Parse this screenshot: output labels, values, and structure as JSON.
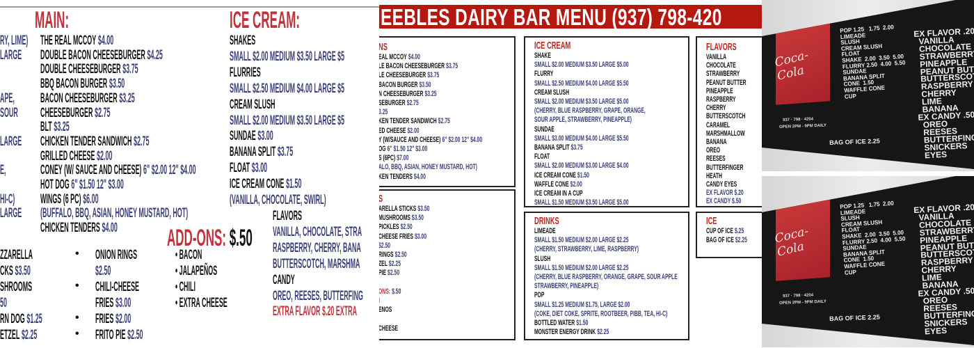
{
  "left_menu": {
    "edge_fragments": [
      "RY, LIME)",
      "LARGE",
      "APE,",
      "SOUR",
      "LARGE",
      "E,",
      "HI-C)",
      "LARGE"
    ],
    "main": {
      "title": "MAIN:",
      "items": [
        {
          "name": "THE REAL MCCOY",
          "price": "$4.00"
        },
        {
          "name": "DOUBLE BACON CHEESEBURGER",
          "price": "$4.25"
        },
        {
          "name": "DOUBLE CHEESEBURGER",
          "price": "$3.75"
        },
        {
          "name": "BBQ BACON BURGER",
          "price": "$3.50"
        },
        {
          "name": "BACON CHEESEBURGER",
          "price": "$3.25"
        },
        {
          "name": "CHEESEBURGER",
          "price": "$2.75"
        },
        {
          "name": "BLT",
          "price": "$3.25"
        },
        {
          "name": "CHICKEN TENDER SANDWICH",
          "price": "$2.75"
        },
        {
          "name": "GRILLED CHEESE",
          "price": "$2.00"
        },
        {
          "name": "CONEY (W/ SAUCE AND CHEESE)",
          "price": "6\" $2.00 12\" $4.00"
        },
        {
          "name": "HOT DOG",
          "price": "6\" $1.50 12\" $3.00"
        },
        {
          "name": "WINGS (6 PC)",
          "price": "$6.00"
        },
        {
          "price": "(BUFFALO, BBQ, ASIAN, HONEY MUSTARD, HOT)"
        },
        {
          "name": "CHICKEN TENDERS",
          "price": "$4.00"
        }
      ]
    },
    "ice_cream": {
      "title": "ICE CREAM:",
      "items": [
        {
          "name": "SHAKES"
        },
        {
          "price": "SMALL $2.00 MEDIUM $3.50 LARGE $5"
        },
        {
          "name": "FLURRIES"
        },
        {
          "price": "SMALL $2.50 MEDIUM $4.00 LARGE $5"
        },
        {
          "name": "CREAM SLUSH"
        },
        {
          "price": "SMALL $2.00 MEDIUM $3.50 LARGE $5"
        },
        {
          "name": "SUNDAE",
          "price": "$3.00"
        },
        {
          "name": "BANANA SPLIT",
          "price": "$3.75"
        },
        {
          "name": "FLOAT",
          "price": "$3.00"
        },
        {
          "name": "ICE CREAM CONE",
          "price": "$1.50"
        },
        {
          "price": "(VANILLA, CHOCOLATE, SWIRL)"
        }
      ],
      "flavors": [
        {
          "name": "FLAVORS"
        },
        {
          "price": "VANILLA, CHOCOLATE, STRA"
        },
        {
          "price": "RASPBERRY, CHERRY, BANA"
        },
        {
          "price": "BUTTERSCOTCH, MARSHMA"
        },
        {
          "name": "CANDY"
        },
        {
          "price": "OREO, REESES, BUTTERFING"
        },
        {
          "extra": "EXTRA FLAVOR $.20 EXTRA"
        }
      ]
    },
    "sides_fragments": [
      {
        "name": "ZZARELLA"
      },
      {
        "name": "CKS",
        "price": "$3.50"
      },
      {
        "name": "SHROOMS"
      },
      {
        "price": "50"
      },
      {
        "name": "RN DOG",
        "price": "$1.25"
      },
      {
        "name": "ETZEL",
        "price": "$2.25"
      }
    ],
    "sides": [
      {
        "name": "ONION RINGS"
      },
      {
        "price": "$2.50"
      },
      {
        "name": "CHILI-CHEESE"
      },
      {
        "name": "FRIES",
        "price": "$3.00"
      },
      {
        "name": "FRIES",
        "price": "$2.00"
      },
      {
        "name": "FRITO PIE",
        "price": "$2.50"
      }
    ],
    "bullet": "•",
    "add_ons": {
      "title": "ADD-ONS:",
      "price": "$.50",
      "items": [
        "• BACON",
        "• JALAPEÑOS",
        "• CHILI",
        "• EXTRA CHEESE"
      ]
    }
  },
  "middle_menu": {
    "banner": "EEBLES DAIRY BAR MENU (937) 798-420",
    "banner_color": "#b5180f",
    "mains": {
      "title": "NS",
      "items": [
        {
          "name": "EAL MCCOY",
          "price": "$4.00"
        },
        {
          "name": "LE BACON CHEESEBURGER",
          "price": "$3.75"
        },
        {
          "name": "LE CHEESEBURGER",
          "price": "$3.75"
        },
        {
          "name": "BACON BURGER",
          "price": "$3.50"
        },
        {
          "name": "N CHEESEBURGER",
          "price": "$3.25"
        },
        {
          "name": "SEBURGER",
          "price": "$2.75"
        },
        {
          "price": "3.25"
        },
        {
          "name": "KEN TENDER SANDWICH",
          "price": "$2.75"
        },
        {
          "name": "ED CHEESE",
          "price": "$2.00"
        },
        {
          "name": "Y (W/SAUCE AND CHEESE)",
          "price": "6\" $2.00 12\" $4.00"
        },
        {
          "name": "OG",
          "price": "6\" $1.50 12\" $3.00"
        },
        {
          "name": "S (6PC)",
          "price": "$7.00"
        },
        {
          "price": "ALO, BBQ, ASIAN, HONEY MUSTARD, HOT)"
        },
        {
          "name": "KEN TENDERS",
          "price": "$4.00"
        }
      ]
    },
    "sides": {
      "title": "S",
      "items": [
        {
          "name": "ARELLA STICKS",
          "price": "$3.50"
        },
        {
          "name": "MUSHROOMS",
          "price": "$3.50"
        },
        {
          "name": "PICKLES",
          "price": "$2.50"
        },
        {
          "name": "CHEESE FRIES",
          "price": "$3.00"
        },
        {
          "price": "$2.50"
        },
        {
          "name": "RINGS",
          "price": "$2.50"
        },
        {
          "name": "ZEL",
          "price": "$2.25"
        },
        {
          "name": "PIE",
          "price": "$2.50"
        },
        {},
        {
          "extra": "ONS:",
          "price": "$.50"
        },
        {
          "name": "I"
        },
        {
          "name": "ENOS"
        },
        {},
        {
          "name": "CHEESE"
        }
      ]
    },
    "ice_cream": {
      "title": "ICE CREAM",
      "items": [
        {
          "name": "SHAKE"
        },
        {
          "price": "SMALL $2.00 MEDIUM $3.50 LARGE $5.00"
        },
        {
          "name": "FLURRY"
        },
        {
          "price": "SMALL $2.50 MEDIUM $4.00 LARGE $5.50"
        },
        {
          "name": "CREAM SLUSH"
        },
        {
          "price": "SMALL $2.00 MEDIUM $3.50 LARGE $5.00"
        },
        {
          "price": "(CHERRY, BLUE RASPBERRY, GRAPE, ORANGE,"
        },
        {
          "price": "SOUR APPLE, STRAWBERRY, PINEAPPLE)"
        },
        {
          "name": "SUNDAE"
        },
        {
          "price": "SMALL $3.00 MEDIUM $4.00 LARGE $5.50"
        },
        {
          "name": "BANANA SPLIT",
          "price": "$3.75"
        },
        {
          "name": "FLOAT"
        },
        {
          "price": "SMALL $2.00 MEDIUM $3.00 LARGE $4.00"
        },
        {
          "name": "ICE CREAM CONE",
          "price": "$1.50"
        },
        {
          "name": "WAFFLE CONE",
          "price": "$2.00"
        },
        {
          "name": "ICE CREAM IN A CUP"
        },
        {
          "price": "SMALL $1.50 MEDIUM $3.50 LARGE $5.00"
        }
      ]
    },
    "flavors": {
      "title": "FLAVORS",
      "items": [
        {
          "name": "VANILLA"
        },
        {
          "name": "CHOCOLATE"
        },
        {
          "name": "STRAWBERRY"
        },
        {
          "name": "PEANUT BUTTER"
        },
        {
          "name": "PINEAPPLE"
        },
        {
          "name": "RASPBERRY"
        },
        {
          "name": "CHERRY"
        },
        {
          "name": "BUTTERSCOTCH"
        },
        {
          "name": "CARAMEL"
        },
        {
          "name": "MARSHMALLOW"
        },
        {
          "name": "BANANA"
        },
        {
          "name": "OREO"
        },
        {
          "name": "REESES"
        },
        {
          "name": "BUTTERFINGER"
        },
        {
          "name": "HEATH"
        },
        {
          "name": "CANDY EYES"
        },
        {
          "price": "EX FLAVOR $.20"
        },
        {
          "price": "EX CANDY $.50"
        }
      ]
    },
    "drinks": {
      "title": "DRINKS",
      "items": [
        {
          "name": "LIMEADE"
        },
        {
          "price": "SMALL $1.50 MEDIUM $2.00 LARGE $2.25"
        },
        {
          "price": "(CHERRY, STRAWBERRY, LIME, RASPBERRY)"
        },
        {
          "name": "SLUSH"
        },
        {
          "price": "SMALL $1.50 MEDIUM $2.00 LARGE $2.25"
        },
        {
          "price": "(CHERRY, BLUE RASPBERRY, ORANGE, GRAPE, SOUR APPLE"
        },
        {
          "price": "STRAWBERRY, PINEAPPLE)"
        },
        {
          "name": "POP"
        },
        {
          "price": "SMALL $1.25 MEDIUM $1.75, LARGE $2.00"
        },
        {
          "price": "(COKE, DIET COKE, SPRITE, ROOTBEER, PIBB, TEA, HI-C)"
        },
        {
          "name": "BOTTLED WATER",
          "price": "$1.50"
        },
        {
          "name": "MONSTER ENERGY DRINK",
          "price": "$2.25"
        }
      ]
    },
    "ice": {
      "title": "ICE",
      "items": [
        {
          "name": "CUP OF ICE",
          "price": "$.25"
        },
        {
          "name": "BAG OF ICE",
          "price": "$2.25"
        }
      ]
    }
  },
  "photo_board": {
    "logo": "Coca-Cola",
    "phone": "937 · 798 · 4204",
    "hours": "OPEN 2PM - 9PM DAILY",
    "left_column": [
      "POP 1.25   1.75  2.00",
      "LIMEADE",
      "SLUSH",
      "CREAM SLUSH",
      "FLOAT",
      "SHAKE  2.00  3.50  5.00",
      "FLURRY 2.50  4.00  5.50",
      "SUNDAE",
      "BANANA SPLIT",
      "CONE  1.50",
      "WAFFLE CONE",
      "CUP"
    ],
    "bag_of_ice": "BAG OF ICE  2.25",
    "right_column": [
      "EX FLAVOR .20",
      "  VANILLA",
      "  CHOCOLATE",
      "  STRAWBERRY",
      "  PINEAPPLE",
      "  PEANUT BUTTER",
      "  BUTTERSCOTCH",
      "  RASPBERRY",
      "  CHERRY",
      "  LIME",
      "  BANANA",
      "EX CANDY .50",
      "  OREO",
      "  REESES",
      "  BUTTERFINGER",
      "  SNICKERS",
      "  EYES"
    ]
  }
}
